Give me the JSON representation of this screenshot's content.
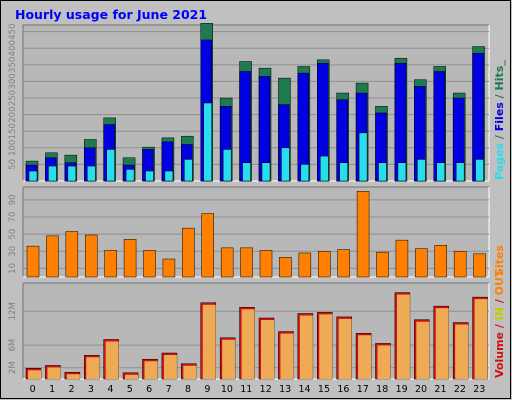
{
  "title": "Hourly usage for June 2021",
  "colors": {
    "background": "#c0c0c0",
    "plot": "#b8b8b8",
    "title": "#0000ff",
    "hits": "#1f7a50",
    "files": "#0000e0",
    "pages": "#28ddee",
    "sites": "#ff8000",
    "volume": "#d01010",
    "volume_in": "#eeaa55",
    "volume_out": "#dd9955"
  },
  "legend": {
    "top": {
      "pages": "Pages",
      "sep1": " / ",
      "files": "Files",
      "sep2": " / ",
      "hits": "Hits_"
    },
    "mid": {
      "sites": "Sites"
    },
    "bot": {
      "volume": "Volume",
      "sep1": " / ",
      "in": "IN",
      "sep2": " / ",
      "out": "OUT"
    }
  },
  "chart_data": [
    {
      "type": "bar",
      "title": "Hourly usage for June 2021",
      "categories": [
        "0",
        "1",
        "2",
        "3",
        "4",
        "5",
        "6",
        "7",
        "8",
        "9",
        "10",
        "11",
        "12",
        "13",
        "14",
        "15",
        "16",
        "17",
        "18",
        "19",
        "20",
        "21",
        "22",
        "23"
      ],
      "ylim": [
        0,
        470
      ],
      "yticks": [
        "50",
        "100",
        "150",
        "200",
        "250",
        "300",
        "350",
        "400",
        "450"
      ],
      "ytick_values": [
        50,
        100,
        150,
        200,
        250,
        300,
        350,
        400,
        450
      ],
      "grid": true,
      "series": [
        {
          "name": "Hits",
          "values": [
            60,
            85,
            78,
            125,
            190,
            70,
            102,
            130,
            135,
            475,
            250,
            360,
            340,
            310,
            345,
            365,
            265,
            295,
            225,
            370,
            305,
            345,
            265,
            405
          ]
        },
        {
          "name": "Files",
          "values": [
            48,
            70,
            55,
            100,
            170,
            48,
            95,
            118,
            110,
            425,
            225,
            330,
            315,
            230,
            325,
            355,
            245,
            265,
            205,
            355,
            285,
            330,
            250,
            385
          ]
        },
        {
          "name": "Pages",
          "values": [
            30,
            45,
            45,
            45,
            95,
            35,
            30,
            30,
            65,
            235,
            95,
            55,
            55,
            100,
            50,
            75,
            55,
            145,
            55,
            55,
            65,
            55,
            55,
            65
          ]
        }
      ]
    },
    {
      "type": "bar",
      "categories": [
        "0",
        "1",
        "2",
        "3",
        "4",
        "5",
        "6",
        "7",
        "8",
        "9",
        "10",
        "11",
        "12",
        "13",
        "14",
        "15",
        "16",
        "17",
        "18",
        "19",
        "20",
        "21",
        "22",
        "23"
      ],
      "ylim": [
        0,
        105
      ],
      "yticks": [
        "10",
        "30",
        "50",
        "70",
        "90"
      ],
      "ytick_values": [
        10,
        30,
        50,
        70,
        90
      ],
      "grid": true,
      "series": [
        {
          "name": "Sites",
          "values": [
            36,
            48,
            53,
            49,
            31,
            44,
            31,
            21,
            57,
            74,
            34,
            34,
            31,
            23,
            28,
            30,
            32,
            100,
            29,
            43,
            33,
            37,
            30,
            27
          ]
        }
      ]
    },
    {
      "type": "bar",
      "categories": [
        "0",
        "1",
        "2",
        "3",
        "4",
        "5",
        "6",
        "7",
        "8",
        "9",
        "10",
        "11",
        "12",
        "13",
        "14",
        "15",
        "16",
        "17",
        "18",
        "19",
        "20",
        "21",
        "22",
        "23"
      ],
      "ylim": [
        0,
        17
      ],
      "yticks": [
        "2M",
        "6M",
        "12M"
      ],
      "ytick_values": [
        2,
        6,
        12
      ],
      "grid": true,
      "series": [
        {
          "name": "Volume",
          "values": [
            1.9,
            2.4,
            1.2,
            4.2,
            7.0,
            1.1,
            3.5,
            4.6,
            2.7,
            13.5,
            7.3,
            12.7,
            10.8,
            8.4,
            11.6,
            11.8,
            11.0,
            8.1,
            6.3,
            15.3,
            10.5,
            12.9,
            10.0,
            14.5
          ]
        }
      ]
    }
  ]
}
